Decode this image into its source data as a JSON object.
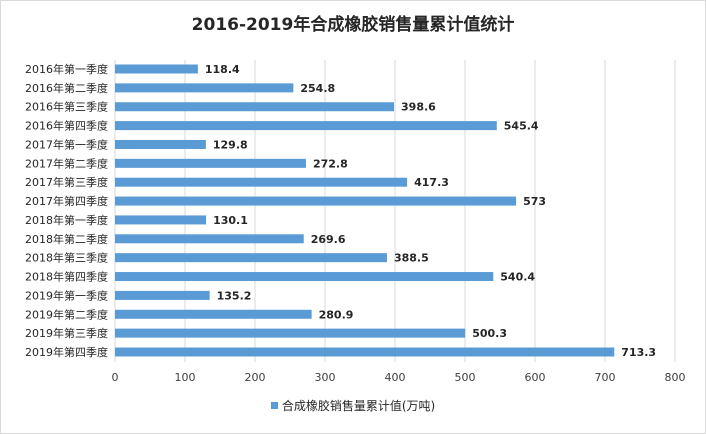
{
  "chart_data": {
    "type": "bar",
    "orientation": "horizontal",
    "title": "2016-2019年合成橡胶销售量累计值统计",
    "categories": [
      "2016年第一季度",
      "2016年第二季度",
      "2016年第三季度",
      "2016年第四季度",
      "2017年第一季度",
      "2017年第二季度",
      "2017年第三季度",
      "2017年第四季度",
      "2018年第一季度",
      "2018年第二季度",
      "2018年第三季度",
      "2018年第四季度",
      "2019年第一季度",
      "2019年第二季度",
      "2019年第三季度",
      "2019年第四季度"
    ],
    "series": [
      {
        "name": "合成橡胶销售量累计值(万吨)",
        "values": [
          118.4,
          254.8,
          398.6,
          545.4,
          129.8,
          272.8,
          417.3,
          573,
          130.1,
          269.6,
          388.5,
          540.4,
          135.2,
          280.9,
          500.3,
          713.3
        ],
        "labels": [
          "118.4",
          "254.8",
          "398.6",
          "545.4",
          "129.8",
          "272.8",
          "417.3",
          "573",
          "130.1",
          "269.6",
          "388.5",
          "540.4",
          "135.2",
          "280.9",
          "500.3",
          "713.3"
        ]
      }
    ],
    "xlim": [
      0,
      800
    ],
    "xticks": [
      0,
      100,
      200,
      300,
      400,
      500,
      600,
      700,
      800
    ],
    "grid": true,
    "legend_position": "bottom",
    "bar_color": "#5b9bd5"
  }
}
